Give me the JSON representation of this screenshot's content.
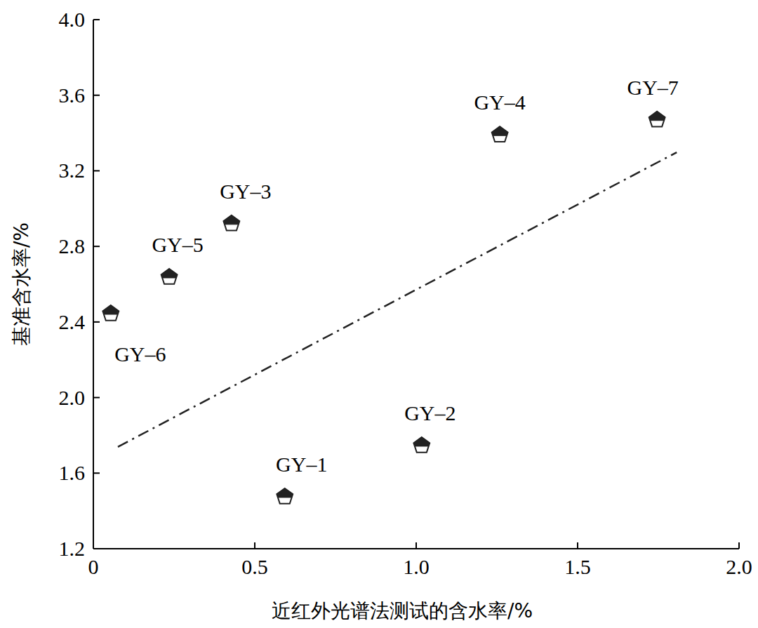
{
  "chart_data": {
    "type": "scatter",
    "x_label": "近红外光谱法测试的含水率/%",
    "y_label": "基准含水率/%",
    "xlim": [
      0,
      2.0
    ],
    "ylim": [
      1.2,
      4.0
    ],
    "xticks": [
      0,
      0.5,
      {
        "value": 1,
        "label": "1.0"
      },
      1.5,
      {
        "value": 2,
        "label": "2.0"
      }
    ],
    "yticks": [
      1.2,
      1.6,
      {
        "value": 2,
        "label": "2.0"
      },
      2.4,
      2.8,
      3.2,
      3.6,
      {
        "value": 4,
        "label": "4.0"
      }
    ],
    "grid": false,
    "series": [
      {
        "type": "scatter",
        "marker": "pentagon",
        "color": "#222222",
        "point_labels": [
          "GY–1",
          "GY–2",
          "GY–3",
          "GY–4",
          "GY–5",
          "GY–6",
          "GY–7"
        ],
        "x": [
          0.593,
          1.017,
          0.428,
          1.259,
          0.235,
          0.054,
          1.746
        ],
        "values": [
          1.475,
          1.746,
          2.92,
          3.39,
          2.637,
          2.444,
          3.47
        ]
      },
      {
        "type": "line",
        "line_style": "dashdot",
        "color": "#222222",
        "x": [
          0.076,
          1.807
        ],
        "values": [
          1.739,
          3.298
        ]
      }
    ]
  }
}
